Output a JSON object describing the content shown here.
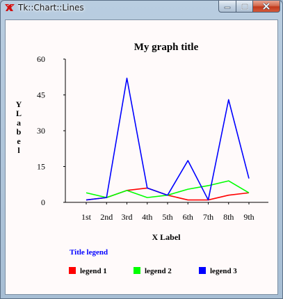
{
  "window": {
    "title": "Tk::Chart::Lines",
    "controls": [
      "minimize",
      "maximize",
      "close"
    ]
  },
  "colors": {
    "legend_title": "#0000ff",
    "series1": "#ff0000",
    "series2": "#00ff00",
    "series3": "#0000ff"
  },
  "chart_data": {
    "type": "line",
    "title": "My graph title",
    "xlabel": "X Label",
    "ylabel": "YLabel",
    "ylim": [
      0,
      60
    ],
    "yticks": [
      "0",
      "15",
      "30",
      "45",
      "60"
    ],
    "categories": [
      "1st",
      "2nd",
      "3rd",
      "4th",
      "5th",
      "6th",
      "7th",
      "8th",
      "9th"
    ],
    "legend_title": "Title legend",
    "legend_placement": "bottom",
    "grid": false,
    "series": [
      {
        "name": "legend 1",
        "color": "#ff0000",
        "values": [
          1,
          2,
          5,
          6,
          3,
          1,
          1,
          3,
          4
        ]
      },
      {
        "name": "legend 2",
        "color": "#00ff00",
        "values": [
          4,
          2,
          5,
          2,
          3,
          5.5,
          7,
          9,
          4
        ]
      },
      {
        "name": "legend 3",
        "color": "#0000ff",
        "values": [
          1,
          2,
          52,
          6,
          3,
          17.5,
          1,
          43,
          10
        ]
      }
    ]
  }
}
